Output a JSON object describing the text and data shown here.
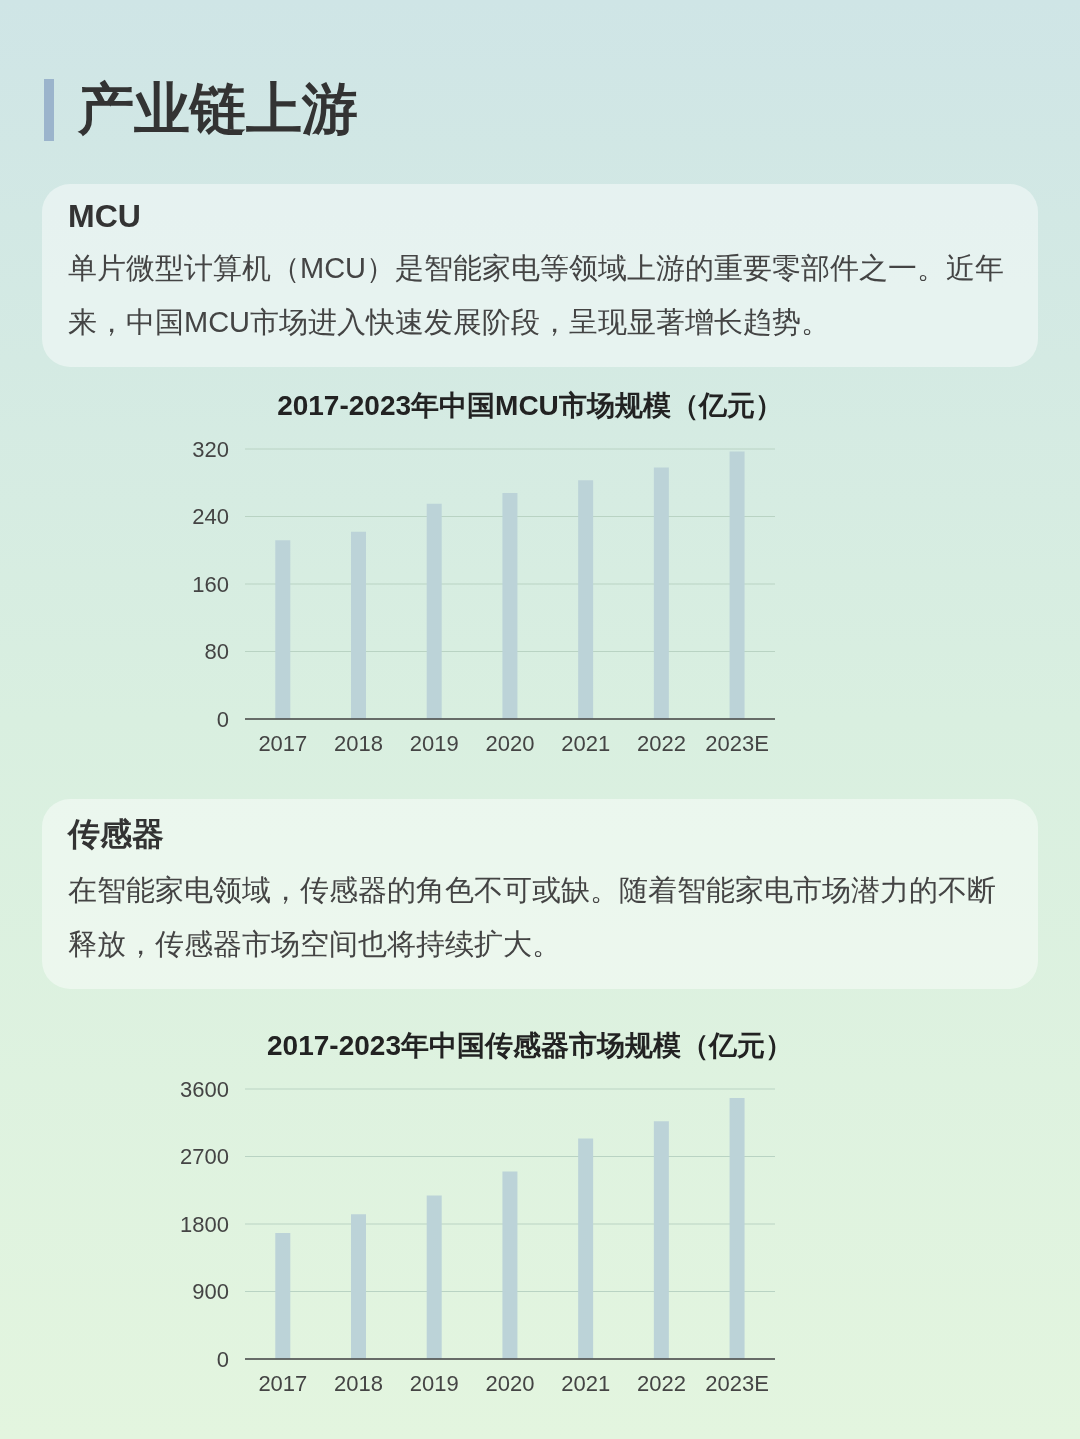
{
  "chart_data": [
    {
      "type": "bar",
      "title": "2017-2023年中国MCU市场规模（亿元）",
      "annotations": [
        "产业链上游",
        "MCU",
        "单片微型计算机（MCU）是智能家电等领域上游的重要零部件之一。近年来，中国MCU市场进入快速发展阶段，呈现显著增长趋势。"
      ],
      "categories": [
        "2017",
        "2018",
        "2019",
        "2020",
        "2021",
        "2022",
        "2023E"
      ],
      "values": [
        212,
        222,
        255,
        268,
        283,
        298,
        317
      ],
      "color": "#bcd3d8",
      "ylim": [
        0,
        320
      ],
      "yticks": [
        0,
        80,
        160,
        240,
        320
      ],
      "grid": "y"
    },
    {
      "type": "bar",
      "title": "2017-2023年中国传感器市场规模（亿元）",
      "annotations": [
        "传感器",
        "在智能家电领域，传感器的角色不可或缺。随着智能家电市场潜力的不断释放，传感器市场空间也将持续扩大。"
      ],
      "categories": [
        "2017",
        "2018",
        "2019",
        "2020",
        "2021",
        "2022",
        "2023E"
      ],
      "values": [
        1680,
        1930,
        2180,
        2500,
        2940,
        3170,
        3480
      ],
      "color": "#bcd3d8",
      "ylim": [
        0,
        3600
      ],
      "yticks": [
        0,
        900,
        1800,
        2700,
        3600
      ],
      "grid": "y"
    }
  ]
}
